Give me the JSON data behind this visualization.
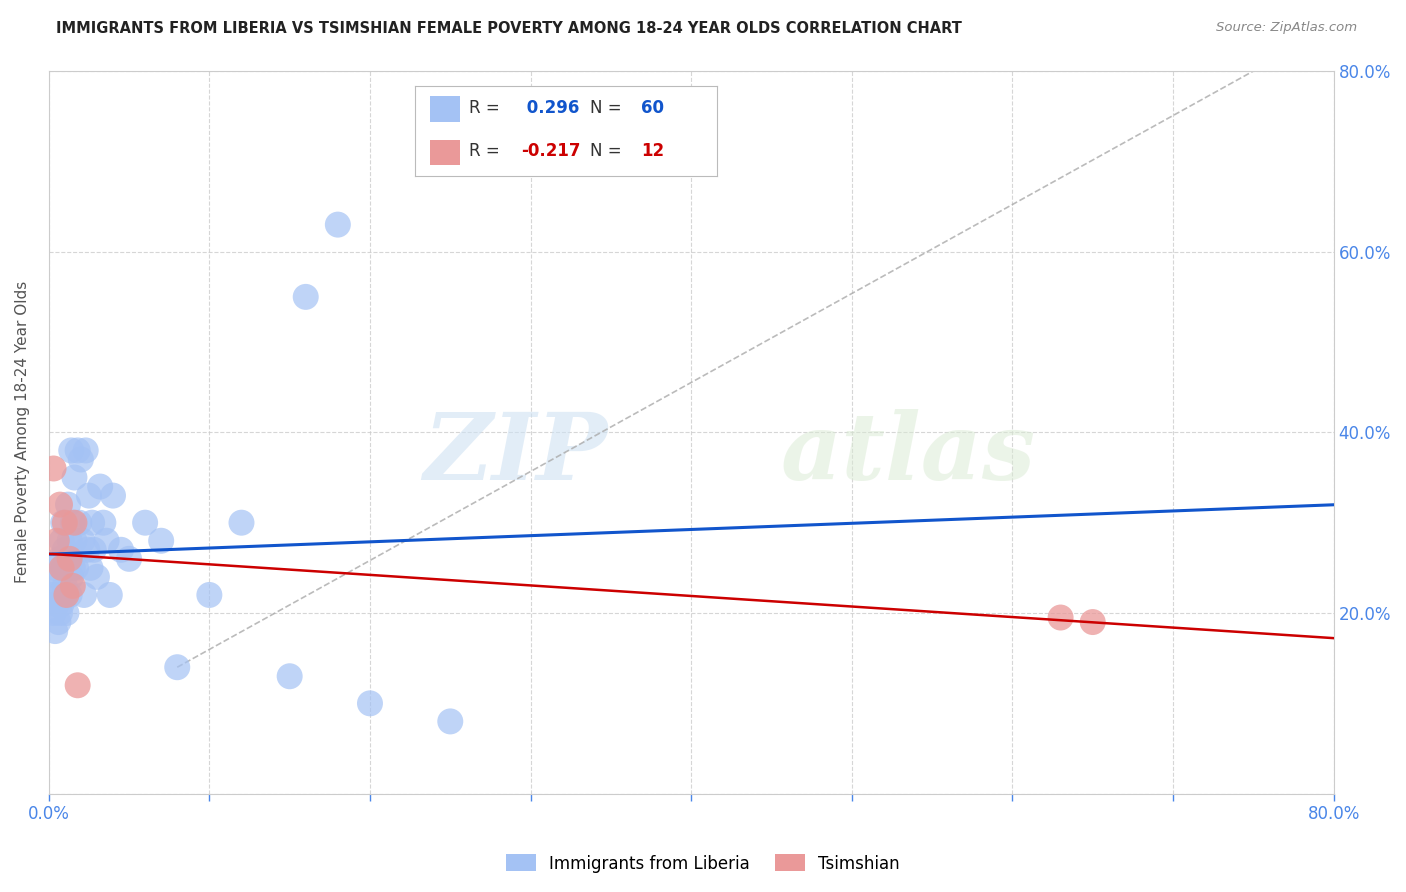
{
  "title": "IMMIGRANTS FROM LIBERIA VS TSIMSHIAN FEMALE POVERTY AMONG 18-24 YEAR OLDS CORRELATION CHART",
  "source": "Source: ZipAtlas.com",
  "ylabel": "Female Poverty Among 18-24 Year Olds",
  "xlim": [
    0.0,
    0.8
  ],
  "ylim": [
    0.0,
    0.8
  ],
  "xticks": [
    0.0,
    0.1,
    0.2,
    0.3,
    0.4,
    0.5,
    0.6,
    0.7,
    0.8
  ],
  "yticks": [
    0.0,
    0.2,
    0.4,
    0.6,
    0.8
  ],
  "xtick_labels": [
    "0.0%",
    "",
    "",
    "",
    "",
    "",
    "",
    "",
    "80.0%"
  ],
  "ytick_labels_right": [
    "",
    "20.0%",
    "40.0%",
    "60.0%",
    "80.0%"
  ],
  "background_color": "#ffffff",
  "blue_color": "#a4c2f4",
  "pink_color": "#ea9999",
  "blue_line_color": "#1155cc",
  "pink_line_color": "#cc0000",
  "axis_color": "#4a86e8",
  "grid_color": "#cccccc",
  "R_blue": 0.296,
  "N_blue": 60,
  "R_pink": -0.217,
  "N_pink": 12,
  "blue_x": [
    0.002,
    0.003,
    0.004,
    0.004,
    0.005,
    0.005,
    0.006,
    0.006,
    0.007,
    0.007,
    0.007,
    0.008,
    0.008,
    0.009,
    0.009,
    0.01,
    0.01,
    0.01,
    0.011,
    0.011,
    0.012,
    0.012,
    0.013,
    0.013,
    0.014,
    0.014,
    0.015,
    0.015,
    0.016,
    0.016,
    0.017,
    0.018,
    0.019,
    0.02,
    0.021,
    0.022,
    0.023,
    0.024,
    0.025,
    0.026,
    0.027,
    0.028,
    0.03,
    0.032,
    0.034,
    0.036,
    0.038,
    0.04,
    0.045,
    0.05,
    0.06,
    0.07,
    0.08,
    0.1,
    0.12,
    0.15,
    0.2,
    0.25,
    0.18,
    0.16
  ],
  "blue_y": [
    0.22,
    0.2,
    0.25,
    0.18,
    0.23,
    0.21,
    0.24,
    0.19,
    0.26,
    0.22,
    0.2,
    0.28,
    0.21,
    0.3,
    0.25,
    0.23,
    0.27,
    0.22,
    0.25,
    0.2,
    0.32,
    0.26,
    0.28,
    0.22,
    0.38,
    0.24,
    0.3,
    0.25,
    0.35,
    0.28,
    0.25,
    0.38,
    0.3,
    0.37,
    0.28,
    0.22,
    0.38,
    0.27,
    0.33,
    0.25,
    0.3,
    0.27,
    0.24,
    0.34,
    0.3,
    0.28,
    0.22,
    0.33,
    0.27,
    0.26,
    0.3,
    0.28,
    0.14,
    0.22,
    0.3,
    0.13,
    0.1,
    0.08,
    0.63,
    0.55
  ],
  "pink_x": [
    0.003,
    0.005,
    0.007,
    0.008,
    0.01,
    0.011,
    0.013,
    0.015,
    0.016,
    0.018,
    0.63,
    0.65
  ],
  "pink_y": [
    0.36,
    0.28,
    0.32,
    0.25,
    0.3,
    0.22,
    0.26,
    0.23,
    0.3,
    0.12,
    0.195,
    0.19
  ],
  "watermark_zip": "ZIP",
  "watermark_atlas": "atlas",
  "dash_line_x": [
    0.08,
    0.75
  ],
  "dash_line_y": [
    0.14,
    0.8
  ]
}
